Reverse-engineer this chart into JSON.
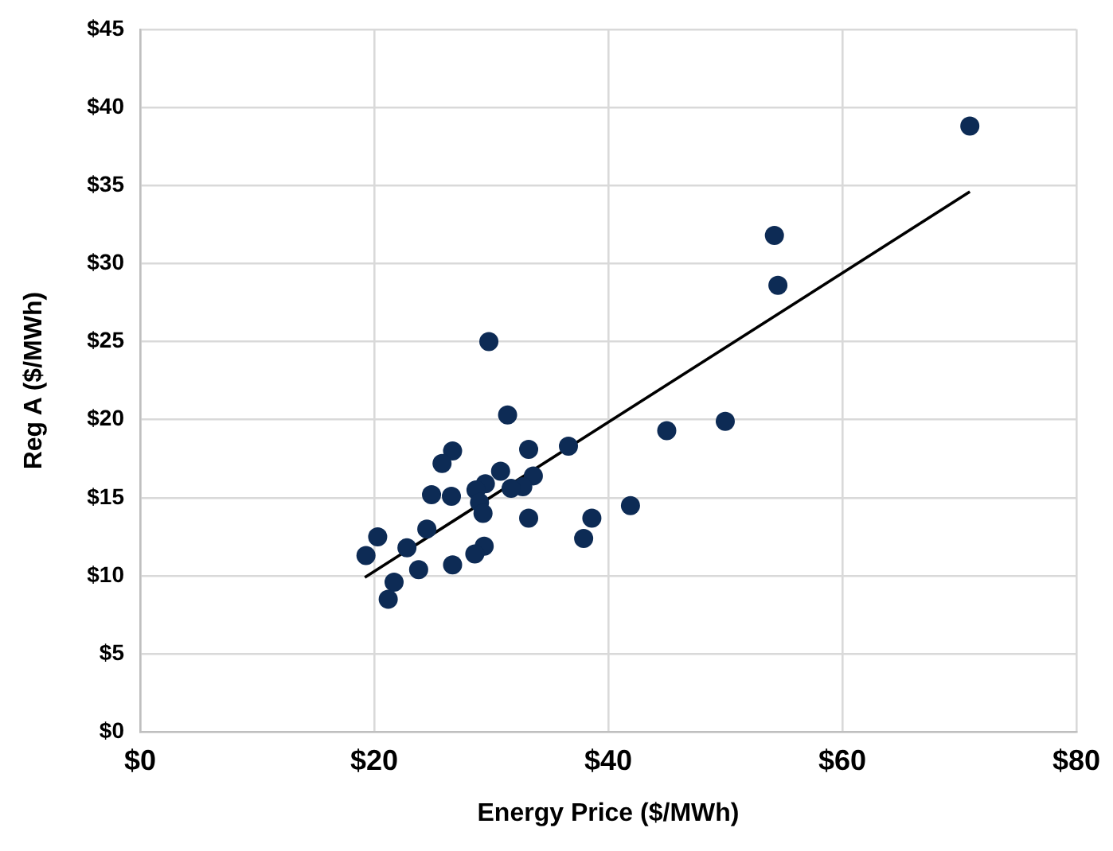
{
  "chart_data": {
    "type": "scatter",
    "xlabel": "Energy Price ($/MWh)",
    "ylabel": "Reg A ($/MWh)",
    "xlim": [
      0,
      80
    ],
    "ylim": [
      0,
      45
    ],
    "xticks": [
      {
        "value": 0,
        "label": "$0"
      },
      {
        "value": 20,
        "label": "$20"
      },
      {
        "value": 40,
        "label": "$40"
      },
      {
        "value": 60,
        "label": "$60"
      },
      {
        "value": 80,
        "label": "$80"
      }
    ],
    "yticks": [
      {
        "value": 0,
        "label": "$0"
      },
      {
        "value": 5,
        "label": "$5"
      },
      {
        "value": 10,
        "label": "$10"
      },
      {
        "value": 15,
        "label": "$15"
      },
      {
        "value": 20,
        "label": "$20"
      },
      {
        "value": 25,
        "label": "$25"
      },
      {
        "value": 30,
        "label": "$30"
      },
      {
        "value": 35,
        "label": "$35"
      },
      {
        "value": 40,
        "label": "$40"
      },
      {
        "value": 45,
        "label": "$45"
      }
    ],
    "grid": true,
    "legend": false,
    "marker": "circle",
    "series": [
      {
        "color": "#0d2b55",
        "x": [
          29.8,
          31.4,
          45.0,
          50.0,
          26.7,
          25.8,
          33.2,
          36.6,
          30.8,
          29.5,
          28.7,
          33.6,
          32.7,
          31.7,
          24.9,
          26.6,
          29.0,
          29.3,
          33.2,
          38.6,
          41.9,
          37.9,
          24.5,
          20.3,
          19.3,
          22.8,
          29.4,
          28.6,
          23.8,
          26.7,
          21.7,
          21.2,
          70.9,
          54.2,
          54.5
        ],
        "values": [
          25.0,
          20.3,
          19.3,
          19.9,
          18.0,
          17.2,
          18.1,
          18.3,
          16.7,
          15.9,
          15.5,
          16.4,
          15.7,
          15.6,
          15.2,
          15.1,
          14.7,
          14.0,
          13.7,
          13.7,
          14.5,
          12.4,
          13.0,
          12.5,
          11.3,
          11.8,
          11.9,
          11.4,
          10.4,
          10.7,
          9.6,
          8.5,
          38.8,
          31.8,
          28.6
        ]
      },
      {
        "type": "line",
        "color": "#000000",
        "x": [
          19.2,
          70.9
        ],
        "values": [
          9.9,
          34.6
        ],
        "marker": "none",
        "line_style": "solid"
      }
    ]
  }
}
